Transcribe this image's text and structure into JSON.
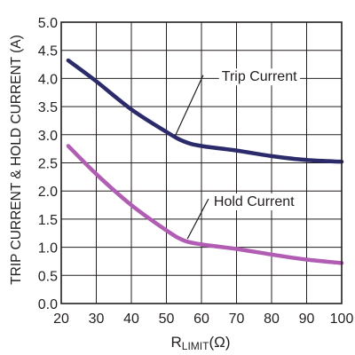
{
  "chart_data": {
    "type": "line",
    "xlabel_main": "R",
    "xlabel_sub": "LIMIT",
    "xlabel_unit": "(Ω)",
    "ylabel": "TRIP CURRENT & HOLD CURRENT (A)",
    "xlim": [
      20,
      100
    ],
    "ylim": [
      0,
      5
    ],
    "x_ticks": [
      "20",
      "30",
      "40",
      "50",
      "60",
      "70",
      "80",
      "90",
      "100"
    ],
    "y_ticks": [
      "0.0",
      "0.5",
      "1.0",
      "1.5",
      "2.0",
      "2.5",
      "3.0",
      "3.5",
      "4.0",
      "4.5",
      "5.0"
    ],
    "grid": true,
    "series": [
      {
        "name": "Trip Current",
        "color": "#2b2a6b",
        "x": [
          22,
          30,
          40,
          50,
          55,
          60,
          70,
          80,
          90,
          100
        ],
        "y": [
          4.32,
          3.95,
          3.45,
          3.05,
          2.88,
          2.8,
          2.72,
          2.62,
          2.55,
          2.52
        ]
      },
      {
        "name": "Hold Current",
        "color": "#b05db3",
        "x": [
          22,
          30,
          40,
          50,
          55,
          60,
          70,
          80,
          90,
          100
        ],
        "y": [
          2.8,
          2.3,
          1.75,
          1.3,
          1.12,
          1.05,
          0.97,
          0.87,
          0.78,
          0.72
        ]
      }
    ]
  }
}
